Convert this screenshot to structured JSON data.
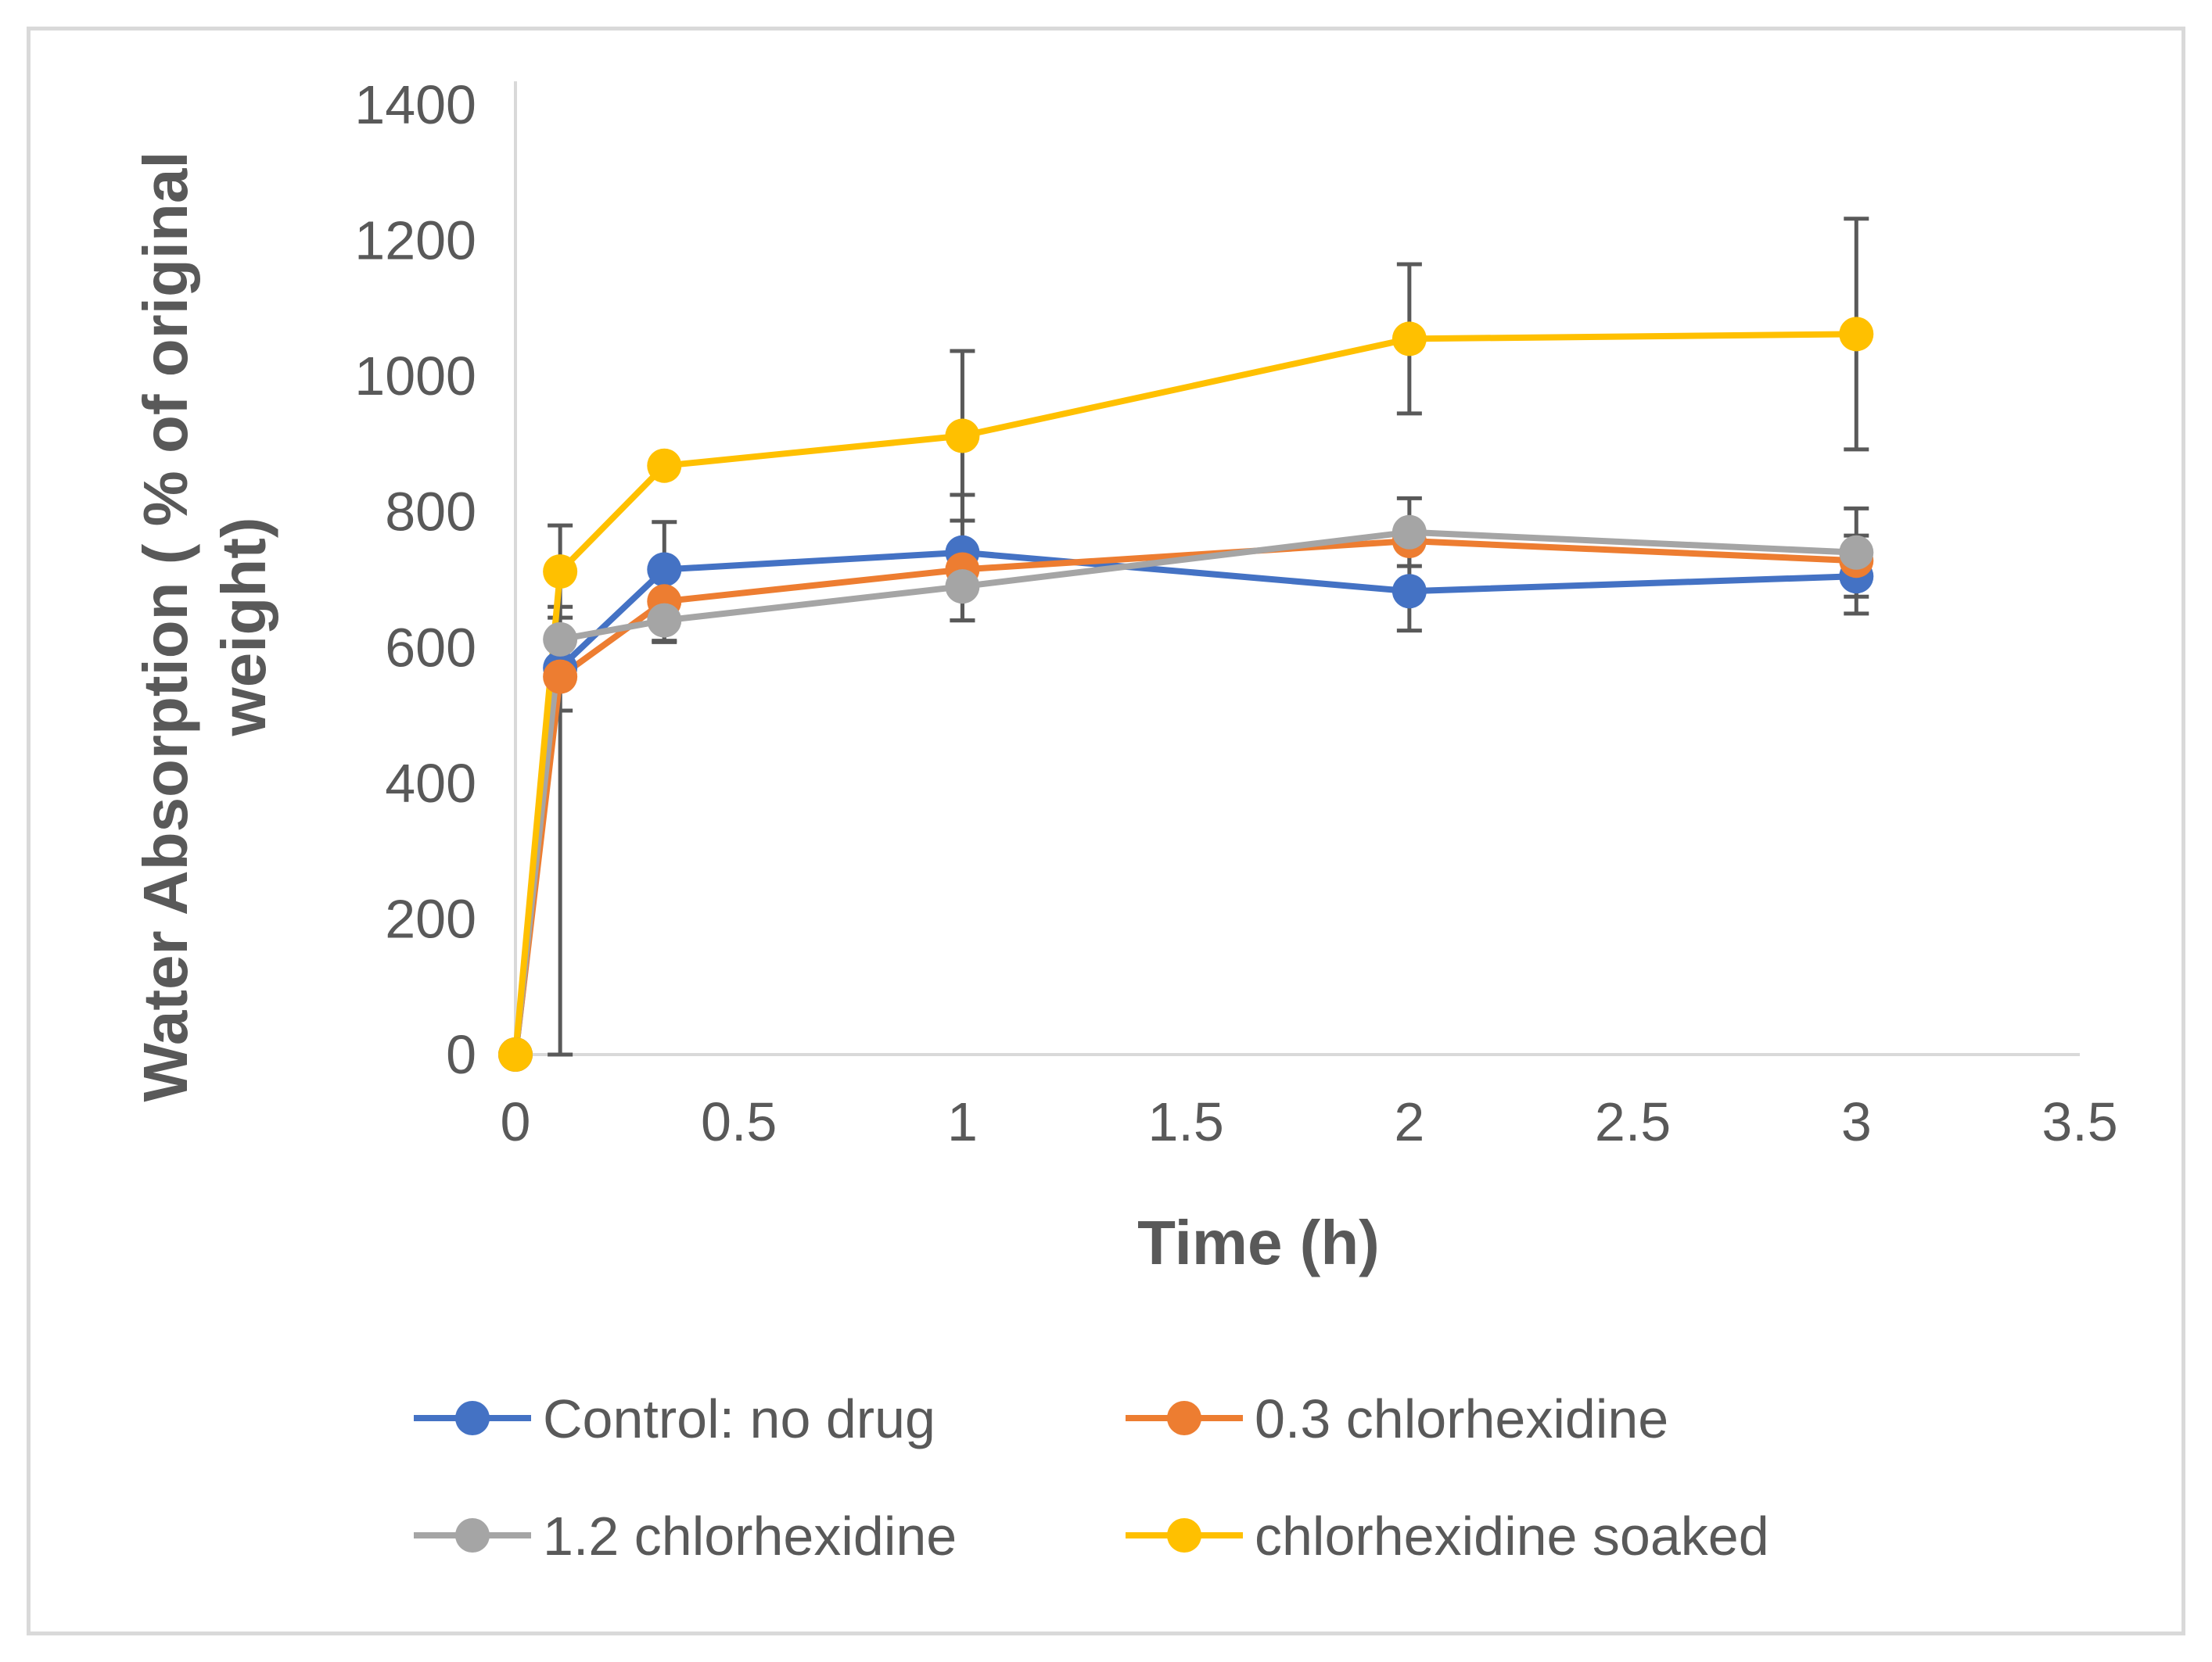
{
  "chart_data": {
    "type": "line",
    "title": "",
    "xlabel": "Time (h)",
    "ylabel_lines": [
      "Water Absorption ( % of original",
      "weight)"
    ],
    "xlim": [
      0,
      3.5
    ],
    "ylim": [
      0,
      1400
    ],
    "xticks": [
      0,
      0.5,
      1,
      1.5,
      2,
      2.5,
      3,
      3.5
    ],
    "xtick_labels": [
      "0",
      "0.5",
      "1",
      "1.5",
      "2",
      "2.5",
      "3",
      "3.5"
    ],
    "yticks": [
      0,
      200,
      400,
      600,
      800,
      1000,
      1200,
      1400
    ],
    "ytick_labels": [
      "0",
      "200",
      "400",
      "600",
      "800",
      "1000",
      "1200",
      "1400"
    ],
    "grid": false,
    "legend_position": "bottom",
    "x": [
      0,
      0.1,
      0.333,
      1,
      2,
      3
    ],
    "series": [
      {
        "name": "Control: no drug",
        "color": "#4472c4",
        "values": [
          0,
          570,
          715,
          740,
          683,
          705
        ],
        "errors": [
          0,
          0,
          0,
          0,
          0,
          0
        ]
      },
      {
        "name": "0.3 chlorhexidine",
        "color": "#ed7d31",
        "values": [
          0,
          557,
          668,
          715,
          757,
          728
        ],
        "errors": [
          0,
          50,
          0,
          0,
          0,
          0
        ]
      },
      {
        "name": "1.2 chlorhexidine",
        "color": "#a5a5a5",
        "values": [
          0,
          612,
          640,
          690,
          770,
          740
        ],
        "errors": [
          0,
          0,
          32,
          50,
          50,
          65
        ]
      },
      {
        "name": "chlorhexidine soaked",
        "color": "#ffc000",
        "values": [
          0,
          712,
          868,
          912,
          1055,
          1062
        ],
        "errors": [
          0,
          68,
          0,
          125,
          110,
          170
        ]
      }
    ],
    "error_bar_color": "#595959",
    "control_error_bars": [
      {
        "x": 0.1,
        "low": 0,
        "high": 660
      },
      {
        "x": 0.333,
        "low": 610,
        "high": 785
      },
      {
        "x": 1,
        "low": 640,
        "high": 825
      },
      {
        "x": 2,
        "low": 625,
        "high": 742
      },
      {
        "x": 3,
        "low": 650,
        "high": 765
      }
    ]
  }
}
